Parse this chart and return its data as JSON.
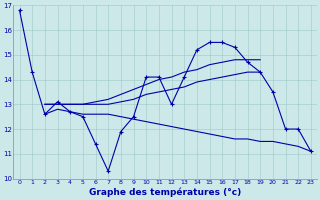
{
  "title": "Graphe des températures (°c)",
  "background_color": "#cce8e8",
  "line_color": "#0000aa",
  "xlim": [
    -0.5,
    23.5
  ],
  "ylim": [
    10,
    17
  ],
  "yticks": [
    10,
    11,
    12,
    13,
    14,
    15,
    16,
    17
  ],
  "xticks": [
    0,
    1,
    2,
    3,
    4,
    5,
    6,
    7,
    8,
    9,
    10,
    11,
    12,
    13,
    14,
    15,
    16,
    17,
    18,
    19,
    20,
    21,
    22,
    23
  ],
  "series": [
    {
      "x": [
        0,
        1,
        2,
        3,
        4,
        5,
        6,
        7,
        8,
        9,
        10,
        11,
        12,
        13,
        14,
        15,
        16,
        17,
        18,
        19,
        20,
        21,
        22,
        23
      ],
      "y": [
        16.8,
        14.3,
        12.6,
        13.1,
        12.7,
        12.5,
        11.4,
        10.3,
        11.9,
        12.5,
        14.1,
        14.1,
        13.0,
        14.1,
        15.2,
        15.5,
        15.5,
        15.3,
        14.7,
        14.3,
        13.5,
        12.0,
        12.0,
        11.1
      ],
      "markers": true
    },
    {
      "x": [
        2,
        3,
        4,
        5,
        6,
        7,
        8,
        9,
        10,
        11,
        12,
        13,
        14,
        15,
        16,
        17,
        18,
        19
      ],
      "y": [
        13.0,
        13.0,
        13.0,
        13.0,
        13.0,
        13.0,
        13.1,
        13.2,
        13.4,
        13.5,
        13.6,
        13.7,
        13.9,
        14.0,
        14.1,
        14.2,
        14.3,
        14.3
      ],
      "markers": false
    },
    {
      "x": [
        2,
        3,
        4,
        5,
        6,
        7,
        8,
        9,
        10,
        11,
        12,
        13,
        14,
        15,
        16,
        17,
        18,
        19
      ],
      "y": [
        13.0,
        13.0,
        13.0,
        13.0,
        13.1,
        13.2,
        13.4,
        13.6,
        13.8,
        14.0,
        14.1,
        14.3,
        14.4,
        14.6,
        14.7,
        14.8,
        14.8,
        14.8
      ],
      "markers": false
    },
    {
      "x": [
        2,
        3,
        4,
        5,
        6,
        7,
        8,
        9,
        10,
        11,
        12,
        13,
        14,
        15,
        16,
        17,
        18,
        19,
        20,
        21,
        22,
        23
      ],
      "y": [
        12.6,
        12.8,
        12.7,
        12.6,
        12.6,
        12.6,
        12.5,
        12.4,
        12.3,
        12.2,
        12.1,
        12.0,
        11.9,
        11.8,
        11.7,
        11.6,
        11.6,
        11.5,
        11.5,
        11.4,
        11.3,
        11.1
      ],
      "markers": false
    }
  ]
}
